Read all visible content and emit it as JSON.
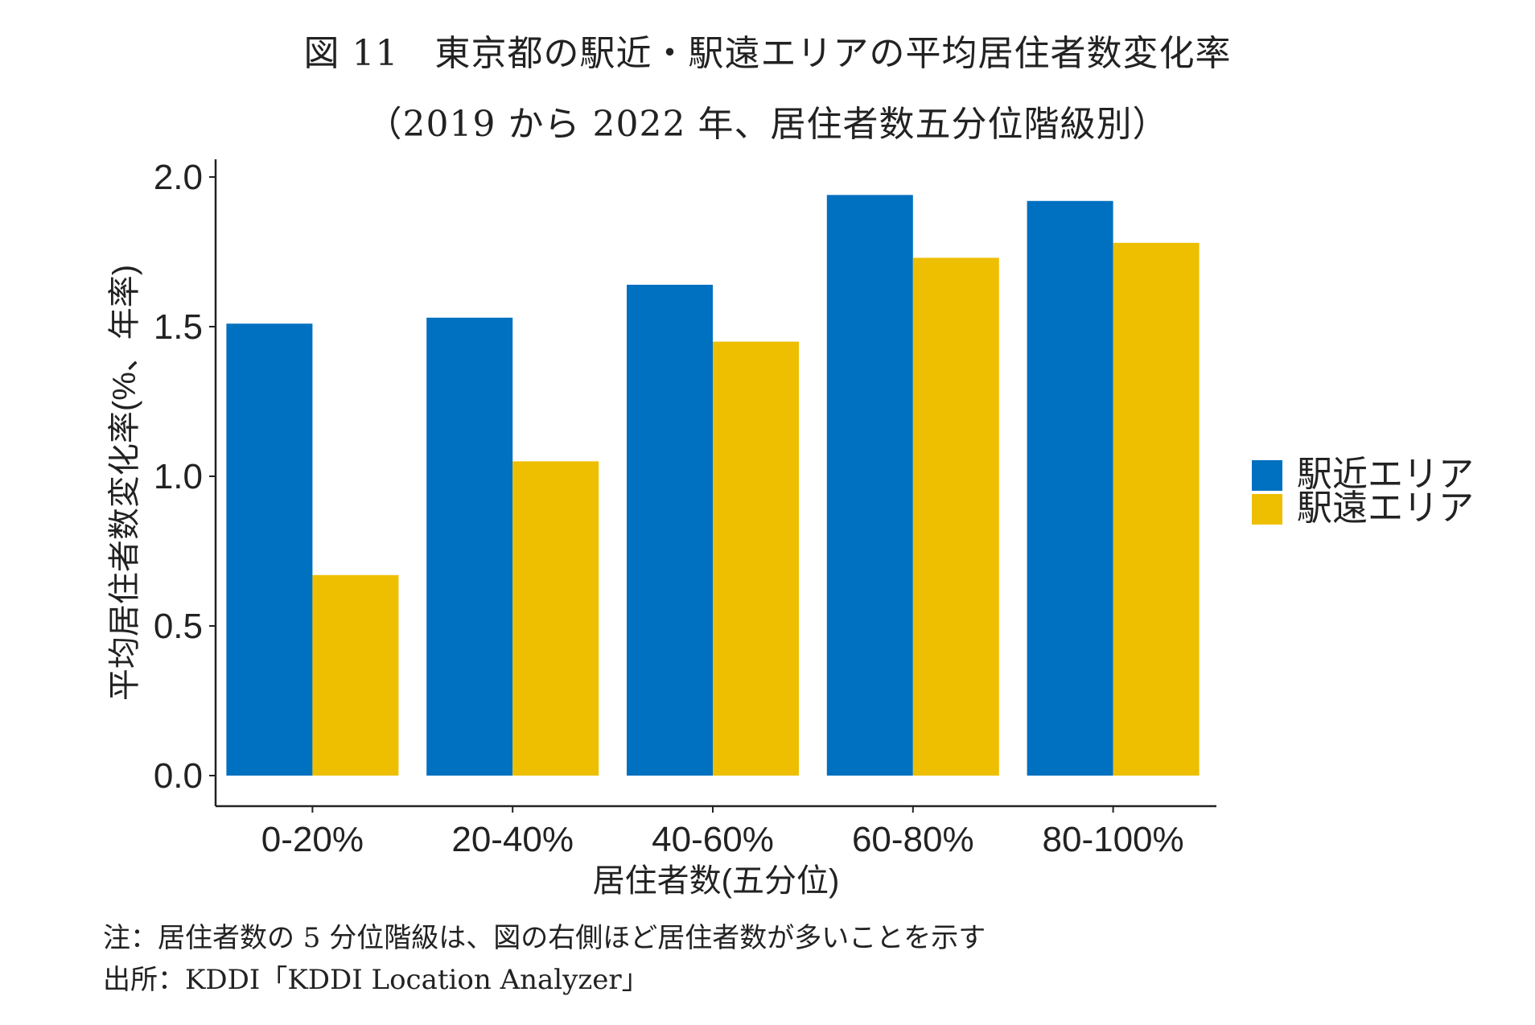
{
  "figure": {
    "title": "図 11　東京都の駅近・駅遠エリアの平均居住者数変化率",
    "subtitle": "（2019 から 2022 年、居住者数五分位階級別）"
  },
  "notes": {
    "note": "注：居住者数の 5 分位階級は、図の右側ほど居住者数が多いことを示す",
    "source": "出所：KDDI「KDDI Location Analyzer」"
  },
  "chart_data": {
    "type": "bar",
    "xlabel": "居住者数(五分位)",
    "ylabel": "平均居住者数変化率(%、年率)",
    "categories": [
      "0-20%",
      "20-40%",
      "40-60%",
      "60-80%",
      "80-100%"
    ],
    "series": [
      {
        "name": "駅近エリア",
        "color": "#0070C0",
        "values": [
          1.51,
          1.53,
          1.64,
          1.94,
          1.92
        ]
      },
      {
        "name": "駅遠エリア",
        "color": "#EDBF00",
        "values": [
          0.67,
          1.05,
          1.45,
          1.73,
          1.78
        ]
      }
    ],
    "ylim": [
      0,
      2.0
    ],
    "yticks": [
      0.0,
      0.5,
      1.0,
      1.5,
      2.0
    ],
    "ytick_labels": [
      "0.0",
      "0.5",
      "1.0",
      "1.5",
      "2.0"
    ],
    "grid": false,
    "legend_position": "right"
  }
}
